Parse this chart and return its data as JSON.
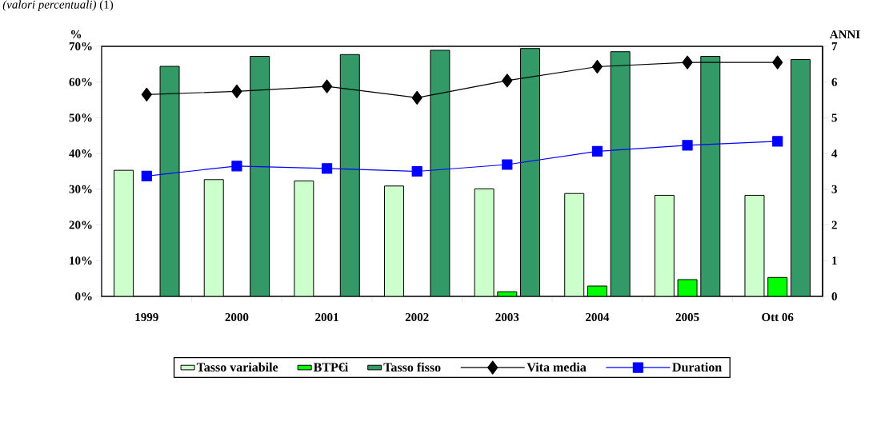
{
  "chart_data": {
    "type": "bar",
    "title": "*(valori percentuali)* (1)",
    "categories": [
      "1999",
      "2000",
      "2001",
      "2002",
      "2003",
      "2004",
      "2005",
      "Ott 06"
    ],
    "ylabel": "%",
    "y2label": "ANNI",
    "ylim": [
      0,
      70
    ],
    "yticks": [
      {
        "value": 0,
        "label": "0%"
      },
      {
        "value": 10,
        "label": "10%"
      },
      {
        "value": 20,
        "label": "20%"
      },
      {
        "value": 30,
        "label": "30%"
      },
      {
        "value": 40,
        "label": "40%"
      },
      {
        "value": 50,
        "label": "50%"
      },
      {
        "value": 60,
        "label": "60%"
      },
      {
        "value": 70,
        "label": "70%"
      }
    ],
    "y2lim": [
      0,
      7
    ],
    "y2ticks": [
      0,
      1,
      2,
      3,
      4,
      5,
      6,
      7
    ],
    "legend": "bottom",
    "series": [
      {
        "name": "Tasso variabile",
        "color": "#ccffcc",
        "values": [
          35.3,
          32.7,
          32.3,
          30.9,
          30.1,
          28.8,
          28.3,
          28.3
        ]
      },
      {
        "name": "BTP€i",
        "color": "#00ff00",
        "values": [
          null,
          null,
          null,
          null,
          1.3,
          2.9,
          4.7,
          5.3
        ]
      },
      {
        "name": "Tasso fisso",
        "color": "#339966",
        "values": [
          64.4,
          67.2,
          67.7,
          68.9,
          69.4,
          68.5,
          67.2,
          66.3
        ]
      },
      {
        "name": "Vita media",
        "type": "line",
        "axis": "y2",
        "marker": "diamond",
        "color": "#000000",
        "values": [
          5.65,
          5.74,
          5.88,
          5.56,
          6.04,
          6.43,
          6.55,
          6.55
        ]
      },
      {
        "name": "Duration",
        "type": "line",
        "axis": "y2",
        "marker": "square",
        "color": "#0000ff",
        "values": [
          3.37,
          3.65,
          3.58,
          3.5,
          3.69,
          4.06,
          4.23,
          4.34
        ]
      }
    ]
  }
}
